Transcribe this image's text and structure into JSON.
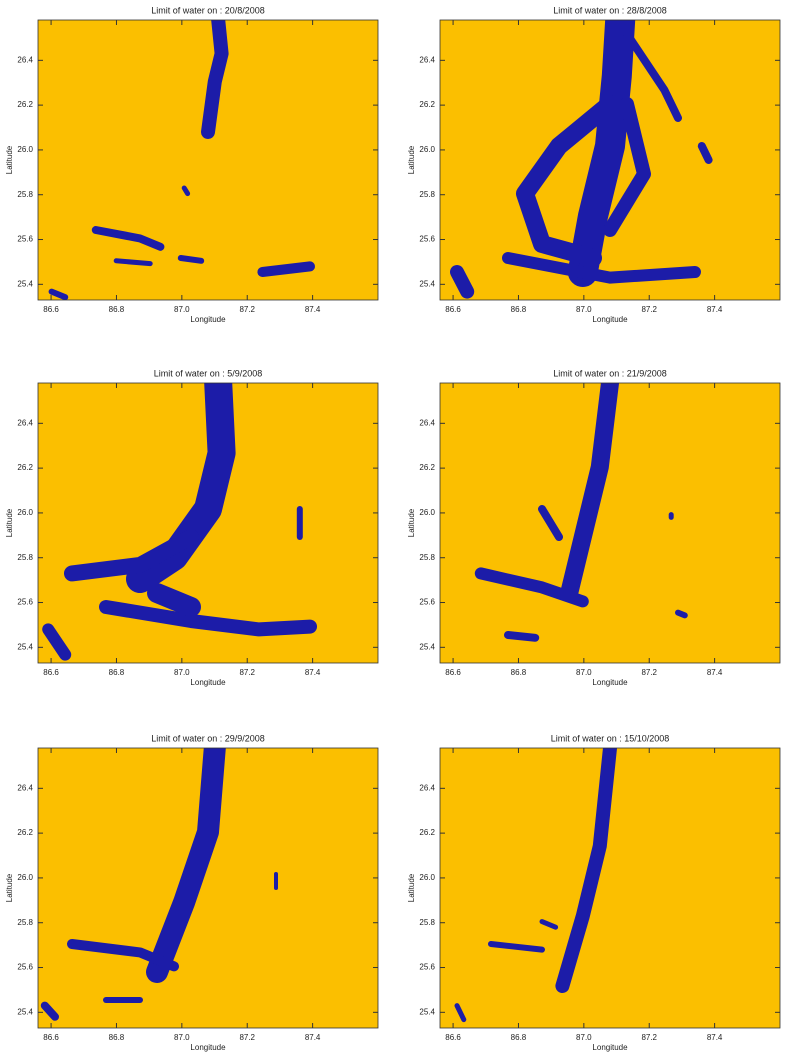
{
  "chart_data": [
    {
      "type": "map",
      "title": "Limit of water on  : 20/8/2008",
      "xlabel": "Longitude",
      "ylabel": "Latitude",
      "xlim": [
        86.56,
        87.6
      ],
      "ylim": [
        25.33,
        26.58
      ],
      "xticks": [
        86.6,
        86.8,
        {
          "value": 87,
          "label": "87.0"
        },
        87.2,
        87.4
      ],
      "yticks": [
        25.4,
        25.6,
        25.8,
        {
          "value": 26,
          "label": "26.0"
        },
        26.2,
        26.4
      ],
      "background": "#fbbf00",
      "color": "#1c1ca8"
    },
    {
      "type": "map",
      "title": "Limit of water on  : 28/8/2008",
      "xlabel": "Longitude",
      "ylabel": "Latitude",
      "xlim": [
        86.56,
        87.6
      ],
      "ylim": [
        25.33,
        26.58
      ],
      "xticks": [
        86.6,
        86.8,
        {
          "value": 87,
          "label": "87.0"
        },
        87.2,
        87.4
      ],
      "yticks": [
        25.4,
        25.6,
        25.8,
        {
          "value": 26,
          "label": "26.0"
        },
        26.2,
        26.4
      ],
      "background": "#fbbf00",
      "color": "#1c1ca8"
    },
    {
      "type": "map",
      "title": "Limit of water on  : 5/9/2008",
      "xlabel": "Longitude",
      "ylabel": "Latitude",
      "xlim": [
        86.56,
        87.6
      ],
      "ylim": [
        25.33,
        26.58
      ],
      "xticks": [
        86.6,
        86.8,
        {
          "value": 87,
          "label": "87.0"
        },
        87.2,
        87.4
      ],
      "yticks": [
        25.4,
        25.6,
        25.8,
        {
          "value": 26,
          "label": "26.0"
        },
        26.2,
        26.4
      ],
      "background": "#fbbf00",
      "color": "#1c1ca8"
    },
    {
      "type": "map",
      "title": "Limit of water on  : 21/9/2008",
      "xlabel": "Longitude",
      "ylabel": "Latitude",
      "xlim": [
        86.56,
        87.6
      ],
      "ylim": [
        25.33,
        26.58
      ],
      "xticks": [
        86.6,
        86.8,
        {
          "value": 87,
          "label": "87.0"
        },
        87.2,
        87.4
      ],
      "yticks": [
        25.4,
        25.6,
        25.8,
        {
          "value": 26,
          "label": "26.0"
        },
        26.2,
        26.4
      ],
      "background": "#fbbf00",
      "color": "#1c1ca8"
    },
    {
      "type": "map",
      "title": "Limit of water on  : 29/9/2008",
      "xlabel": "Longitude",
      "ylabel": "Latitude",
      "xlim": [
        86.56,
        87.6
      ],
      "ylim": [
        25.33,
        26.58
      ],
      "xticks": [
        86.6,
        86.8,
        {
          "value": 87,
          "label": "87.0"
        },
        87.2,
        87.4
      ],
      "yticks": [
        25.4,
        25.6,
        25.8,
        {
          "value": 26,
          "label": "26.0"
        },
        26.2,
        26.4
      ],
      "background": "#fbbf00",
      "color": "#1c1ca8"
    },
    {
      "type": "map",
      "title": "Limit of water on  : 15/10/2008",
      "xlabel": "Longitude",
      "ylabel": "Latitude",
      "xlim": [
        86.56,
        87.6
      ],
      "ylim": [
        25.33,
        26.58
      ],
      "xticks": [
        86.6,
        86.8,
        {
          "value": 87,
          "label": "87.0"
        },
        87.2,
        87.4
      ],
      "yticks": [
        25.4,
        25.6,
        25.8,
        {
          "value": 26,
          "label": "26.0"
        },
        26.2,
        26.4
      ],
      "background": "#fbbf00",
      "color": "#1c1ca8"
    }
  ]
}
